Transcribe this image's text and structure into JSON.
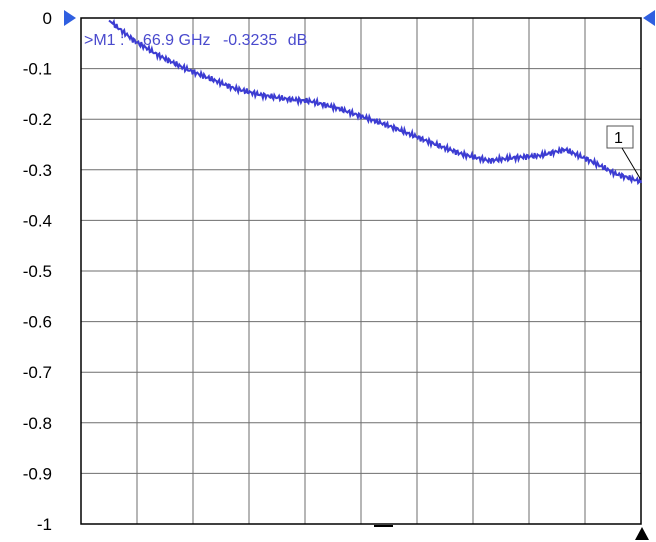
{
  "chart_data": {
    "type": "line",
    "title": "",
    "xlabel": "",
    "ylabel": "",
    "ylim": [
      -1,
      0
    ],
    "yticks": [
      "0",
      "-0.1",
      "-0.2",
      "-0.3",
      "-0.4",
      "-0.5",
      "-0.6",
      "-0.7",
      "-0.8",
      "-0.9",
      "-1"
    ],
    "grid": true,
    "x_divisions": 10,
    "colors": {
      "trace": "#3c3cd2",
      "grid": "#6e6e6e",
      "frame": "#000000",
      "marker_info": "#4a4acd",
      "arrow": "#2f5fe0"
    },
    "series": [
      {
        "values": [
          -0.005,
          -0.045,
          -0.075,
          -0.1,
          -0.12,
          -0.14,
          -0.152,
          -0.16,
          -0.165,
          -0.178,
          -0.195,
          -0.212,
          -0.232,
          -0.252,
          -0.27,
          -0.282,
          -0.276,
          -0.272,
          -0.26,
          -0.282,
          -0.308,
          -0.3235
        ]
      }
    ],
    "marker": {
      "label": "1",
      "readout_prefix": ">M1 :",
      "readout_freq": "66.9 GHz",
      "readout_value": "-0.3235",
      "readout_unit": "dB",
      "value": -0.3235
    }
  }
}
